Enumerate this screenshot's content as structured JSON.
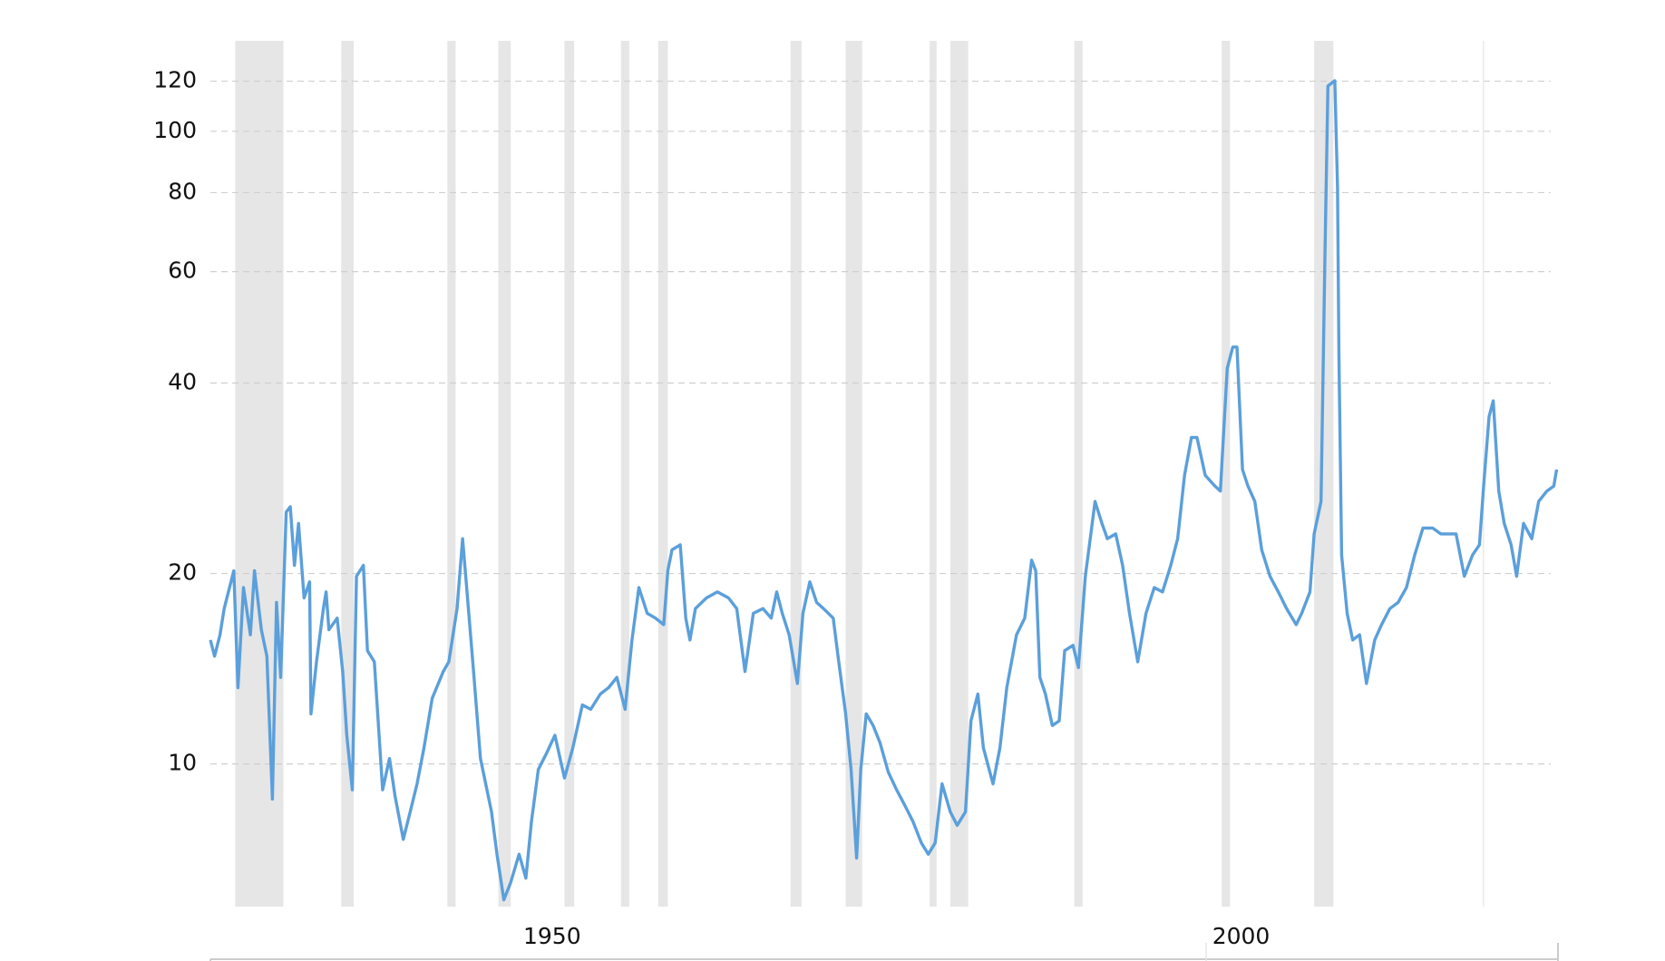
{
  "chart_data": {
    "type": "line",
    "log_scale": true,
    "grid": true,
    "color": "#5b9fdb",
    "band_color": "#e6e6e6",
    "xlim": [
      1925.2,
      2023.0
    ],
    "xticks": [
      1950,
      2000
    ],
    "ylim": [
      5.95,
      139
    ],
    "yticks": [
      10,
      20,
      40,
      60,
      80,
      100,
      120
    ],
    "recessions": [
      [
        1927.0,
        1930.5
      ],
      [
        1934.7,
        1935.6
      ],
      [
        1942.4,
        1943.0
      ],
      [
        1946.1,
        1947.0
      ],
      [
        1950.9,
        1951.6
      ],
      [
        1955.0,
        1955.6
      ],
      [
        1957.7,
        1958.4
      ],
      [
        1967.3,
        1968.1
      ],
      [
        1971.3,
        1972.5
      ],
      [
        1977.4,
        1977.9
      ],
      [
        1978.9,
        1980.2
      ],
      [
        1987.9,
        1988.5
      ],
      [
        1998.6,
        1999.2
      ],
      [
        2005.3,
        2006.7
      ],
      [
        2017.55,
        2017.63
      ]
    ],
    "x": [
      1925.2,
      1925.5,
      1925.9,
      1926.2,
      1926.9,
      1927.2,
      1927.6,
      1928.1,
      1928.4,
      1928.9,
      1929.3,
      1929.7,
      1930.0,
      1930.3,
      1930.7,
      1931.0,
      1931.3,
      1931.6,
      1932.0,
      1932.4,
      1932.5,
      1932.9,
      1933.4,
      1933.6,
      1933.8,
      1934.4,
      1934.8,
      1935.1,
      1935.5,
      1935.8,
      1936.3,
      1936.6,
      1937.1,
      1937.7,
      1938.2,
      1938.6,
      1939.2,
      1939.7,
      1940.2,
      1940.7,
      1941.3,
      1942.1,
      1942.5,
      1943.1,
      1943.5,
      1943.8,
      1944.3,
      1944.8,
      1945.6,
      1946.0,
      1946.5,
      1947.0,
      1947.6,
      1948.1,
      1948.5,
      1949.0,
      1949.6,
      1950.2,
      1950.9,
      1951.5,
      1952.2,
      1952.8,
      1953.5,
      1954.1,
      1954.7,
      1955.3,
      1955.8,
      1956.3,
      1956.9,
      1957.5,
      1958.1,
      1958.4,
      1958.7,
      1959.3,
      1959.7,
      1960.0,
      1960.4,
      1961.2,
      1962.0,
      1962.8,
      1963.4,
      1964.0,
      1964.6,
      1965.3,
      1965.9,
      1966.3,
      1966.7,
      1967.2,
      1967.8,
      1968.2,
      1968.7,
      1969.2,
      1969.7,
      1970.4,
      1970.8,
      1971.3,
      1971.7,
      1972.1,
      1972.4,
      1972.8,
      1973.3,
      1973.8,
      1974.4,
      1975.0,
      1975.6,
      1976.2,
      1976.8,
      1977.3,
      1977.8,
      1978.3,
      1978.9,
      1979.4,
      1980.0,
      1980.4,
      1980.9,
      1981.3,
      1982.0,
      1982.5,
      1983.0,
      1983.7,
      1984.3,
      1984.8,
      1985.1,
      1985.4,
      1985.8,
      1986.3,
      1986.8,
      1987.2,
      1987.8,
      1988.2,
      1988.7,
      1989.1,
      1989.4,
      1989.9,
      1990.3,
      1990.9,
      1991.4,
      1991.9,
      1992.5,
      1993.1,
      1993.7,
      1994.3,
      1994.9,
      1995.4,
      1995.9,
      1996.4,
      1996.8,
      1997.4,
      1998.1,
      1998.5,
      1999.0,
      1999.4,
      1999.7,
      2000.1,
      2000.5,
      2001.0,
      2001.5,
      2002.1,
      2002.7,
      2003.3,
      2004.0,
      2004.4,
      2005.0,
      2005.3,
      2005.8,
      2006.1,
      2006.3,
      2006.8,
      2007.0,
      2007.1,
      2007.3,
      2007.7,
      2008.1,
      2008.6,
      2009.1,
      2009.7,
      2010.2,
      2010.8,
      2011.4,
      2012.0,
      2012.6,
      2013.2,
      2013.9,
      2014.5,
      2015.1,
      2015.6,
      2016.2,
      2016.8,
      2017.3,
      2017.6,
      2018.0,
      2018.3,
      2018.7,
      2019.1,
      2019.6,
      2020.0,
      2020.5,
      2021.1,
      2021.6,
      2022.2,
      2022.7,
      2022.9
    ],
    "values": [
      15.7,
      14.8,
      16.0,
      17.6,
      20.2,
      13.2,
      19.0,
      16.0,
      20.2,
      16.3,
      14.8,
      8.8,
      18.0,
      13.7,
      25.0,
      25.5,
      20.6,
      24.0,
      18.3,
      19.4,
      12.0,
      14.5,
      17.6,
      18.7,
      16.3,
      17.0,
      14.0,
      11.1,
      9.1,
      19.8,
      20.6,
      15.1,
      14.5,
      9.1,
      10.2,
      8.9,
      7.6,
      8.4,
      9.3,
      10.6,
      12.7,
      14.0,
      14.5,
      17.6,
      22.7,
      19.0,
      14.0,
      10.2,
      8.4,
      7.2,
      6.1,
      6.5,
      7.2,
      6.6,
      8.1,
      9.8,
      10.4,
      11.1,
      9.5,
      10.6,
      12.4,
      12.2,
      12.9,
      13.2,
      13.7,
      12.2,
      15.7,
      19.0,
      17.3,
      17.0,
      16.6,
      20.2,
      21.8,
      22.2,
      17.0,
      15.7,
      17.6,
      18.3,
      18.7,
      18.3,
      17.6,
      14.0,
      17.3,
      17.6,
      17.0,
      18.7,
      17.3,
      16.0,
      13.4,
      17.3,
      19.4,
      18.0,
      17.6,
      17.0,
      14.5,
      12.0,
      9.8,
      7.1,
      9.8,
      12.0,
      11.5,
      10.8,
      9.7,
      9.1,
      8.6,
      8.1,
      7.5,
      7.2,
      7.5,
      9.3,
      8.4,
      8.0,
      8.4,
      11.7,
      12.9,
      10.6,
      9.3,
      10.6,
      13.2,
      16.0,
      17.0,
      21.0,
      20.2,
      13.7,
      12.9,
      11.5,
      11.7,
      15.1,
      15.4,
      14.2,
      19.8,
      23.1,
      26.0,
      24.0,
      22.7,
      23.1,
      20.6,
      17.3,
      14.5,
      17.3,
      19.0,
      18.7,
      20.6,
      22.7,
      28.6,
      32.8,
      32.8,
      28.6,
      27.5,
      27.0,
      42.2,
      45.6,
      45.6,
      29.2,
      27.5,
      26.0,
      21.8,
      19.8,
      18.7,
      17.6,
      16.6,
      17.3,
      18.7,
      23.1,
      26.0,
      65.9,
      117.9,
      120.2,
      81.5,
      44.7,
      21.4,
      17.3,
      15.7,
      16.0,
      13.4,
      15.7,
      16.6,
      17.6,
      18.0,
      19.0,
      21.4,
      23.6,
      23.6,
      23.1,
      23.1,
      23.1,
      19.8,
      21.4,
      22.2,
      27.5,
      35.4,
      37.5,
      27.0,
      24.0,
      22.2,
      19.8,
      24.0,
      22.7,
      26.0,
      27.0,
      27.5,
      29.2
    ]
  }
}
